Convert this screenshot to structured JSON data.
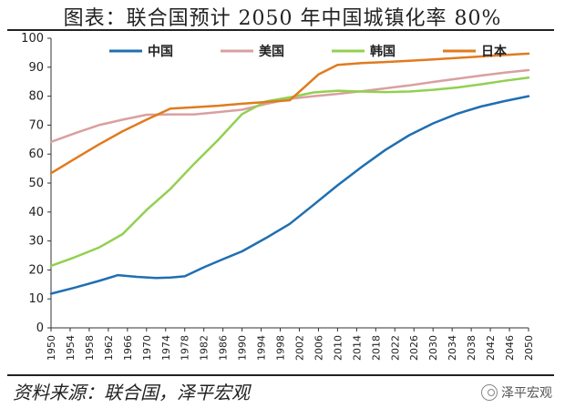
{
  "title": "图表：联合国预计 2050 年中国城镇化率 80%",
  "source": "资料来源：联合国，泽平宏观",
  "watermark": "泽平宏观",
  "watermark_icon": "wechat-icon",
  "chart_data": {
    "type": "line",
    "title": "图表：联合国预计 2050 年中国城镇化率 80%",
    "xlabel": "",
    "ylabel": "",
    "xlim": [
      1950,
      2050
    ],
    "ylim": [
      0,
      100
    ],
    "yticks": [
      0,
      10,
      20,
      30,
      40,
      50,
      60,
      70,
      80,
      90,
      100
    ],
    "xticks": [
      1950,
      1954,
      1958,
      1962,
      1966,
      1970,
      1974,
      1978,
      1982,
      1986,
      1990,
      1994,
      1998,
      2002,
      2006,
      2010,
      2014,
      2018,
      2022,
      2026,
      2030,
      2034,
      2038,
      2042,
      2046,
      2050
    ],
    "grid": false,
    "legend_position": "top",
    "series": [
      {
        "name": "中国",
        "color": "#1f6fb2",
        "points": [
          [
            1950,
            11.8
          ],
          [
            1955,
            13.9
          ],
          [
            1960,
            16.2
          ],
          [
            1964,
            18.2
          ],
          [
            1968,
            17.6
          ],
          [
            1972,
            17.2
          ],
          [
            1975,
            17.4
          ],
          [
            1978,
            17.8
          ],
          [
            1982,
            20.9
          ],
          [
            1986,
            23.7
          ],
          [
            1990,
            26.4
          ],
          [
            1995,
            31.0
          ],
          [
            2000,
            35.9
          ],
          [
            2005,
            42.5
          ],
          [
            2010,
            49.2
          ],
          [
            2015,
            55.5
          ],
          [
            2020,
            61.4
          ],
          [
            2025,
            66.5
          ],
          [
            2030,
            70.6
          ],
          [
            2035,
            73.9
          ],
          [
            2040,
            76.4
          ],
          [
            2045,
            78.3
          ],
          [
            2050,
            80.0
          ]
        ]
      },
      {
        "name": "美国",
        "color": "#d9a0a0",
        "points": [
          [
            1950,
            64.2
          ],
          [
            1955,
            67.2
          ],
          [
            1960,
            70.0
          ],
          [
            1965,
            71.9
          ],
          [
            1970,
            73.6
          ],
          [
            1975,
            73.7
          ],
          [
            1980,
            73.7
          ],
          [
            1985,
            74.5
          ],
          [
            1990,
            75.3
          ],
          [
            1995,
            77.3
          ],
          [
            2000,
            79.1
          ],
          [
            2005,
            80.0
          ],
          [
            2010,
            80.8
          ],
          [
            2015,
            81.7
          ],
          [
            2020,
            82.7
          ],
          [
            2025,
            83.7
          ],
          [
            2030,
            84.9
          ],
          [
            2035,
            86.0
          ],
          [
            2040,
            87.1
          ],
          [
            2045,
            88.1
          ],
          [
            2050,
            89.0
          ]
        ]
      },
      {
        "name": "韩国",
        "color": "#92d050",
        "points": [
          [
            1950,
            21.4
          ],
          [
            1955,
            24.4
          ],
          [
            1960,
            27.7
          ],
          [
            1965,
            32.4
          ],
          [
            1970,
            40.7
          ],
          [
            1975,
            48.0
          ],
          [
            1980,
            56.7
          ],
          [
            1985,
            64.9
          ],
          [
            1990,
            73.8
          ],
          [
            1995,
            78.2
          ],
          [
            2000,
            79.6
          ],
          [
            2005,
            81.3
          ],
          [
            2010,
            81.9
          ],
          [
            2015,
            81.6
          ],
          [
            2020,
            81.4
          ],
          [
            2025,
            81.6
          ],
          [
            2030,
            82.2
          ],
          [
            2035,
            83.0
          ],
          [
            2040,
            84.1
          ],
          [
            2045,
            85.3
          ],
          [
            2050,
            86.4
          ]
        ]
      },
      {
        "name": "日本",
        "color": "#e07b1f",
        "points": [
          [
            1950,
            53.4
          ],
          [
            1955,
            58.4
          ],
          [
            1960,
            63.3
          ],
          [
            1965,
            67.9
          ],
          [
            1970,
            71.9
          ],
          [
            1975,
            75.7
          ],
          [
            1980,
            76.2
          ],
          [
            1985,
            76.7
          ],
          [
            1990,
            77.4
          ],
          [
            1995,
            78.0
          ],
          [
            2000,
            78.6
          ],
          [
            2003,
            83.0
          ],
          [
            2006,
            87.5
          ],
          [
            2010,
            90.8
          ],
          [
            2015,
            91.4
          ],
          [
            2020,
            91.8
          ],
          [
            2025,
            92.2
          ],
          [
            2030,
            92.7
          ],
          [
            2035,
            93.2
          ],
          [
            2040,
            93.7
          ],
          [
            2045,
            94.2
          ],
          [
            2050,
            94.7
          ]
        ]
      }
    ]
  }
}
